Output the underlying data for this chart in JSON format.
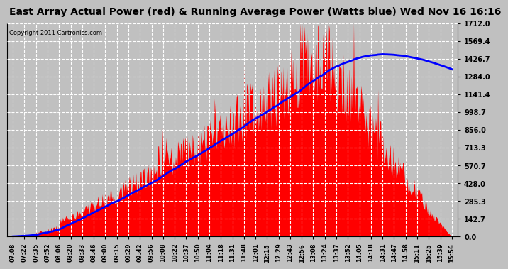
{
  "title": "East Array Actual Power (red) & Running Average Power (Watts blue) Wed Nov 16 16:16",
  "copyright": "Copyright 2011 Cartronics.com",
  "y_max": 1712.0,
  "y_ticks": [
    0.0,
    142.7,
    285.3,
    428.0,
    570.7,
    713.3,
    856.0,
    998.7,
    1141.4,
    1284.0,
    1426.7,
    1569.4,
    1712.0
  ],
  "bg_color": "#c0c0c0",
  "plot_bg_color": "#c0c0c0",
  "grid_color": "#ffffff",
  "bar_color": "#ff0000",
  "line_color": "#0000ff",
  "title_fontsize": 10,
  "x_labels": [
    "07:08",
    "07:22",
    "07:35",
    "07:52",
    "08:06",
    "08:20",
    "08:33",
    "08:46",
    "09:00",
    "09:15",
    "09:29",
    "09:42",
    "09:56",
    "10:08",
    "10:22",
    "10:37",
    "10:50",
    "11:04",
    "11:18",
    "11:31",
    "11:48",
    "12:01",
    "12:15",
    "12:29",
    "12:43",
    "12:56",
    "13:08",
    "13:24",
    "13:37",
    "13:52",
    "14:05",
    "14:18",
    "14:31",
    "14:47",
    "14:58",
    "15:11",
    "15:25",
    "15:39",
    "15:56"
  ],
  "peak_idx": 27,
  "peak_val": 1680,
  "n_fine": 600
}
